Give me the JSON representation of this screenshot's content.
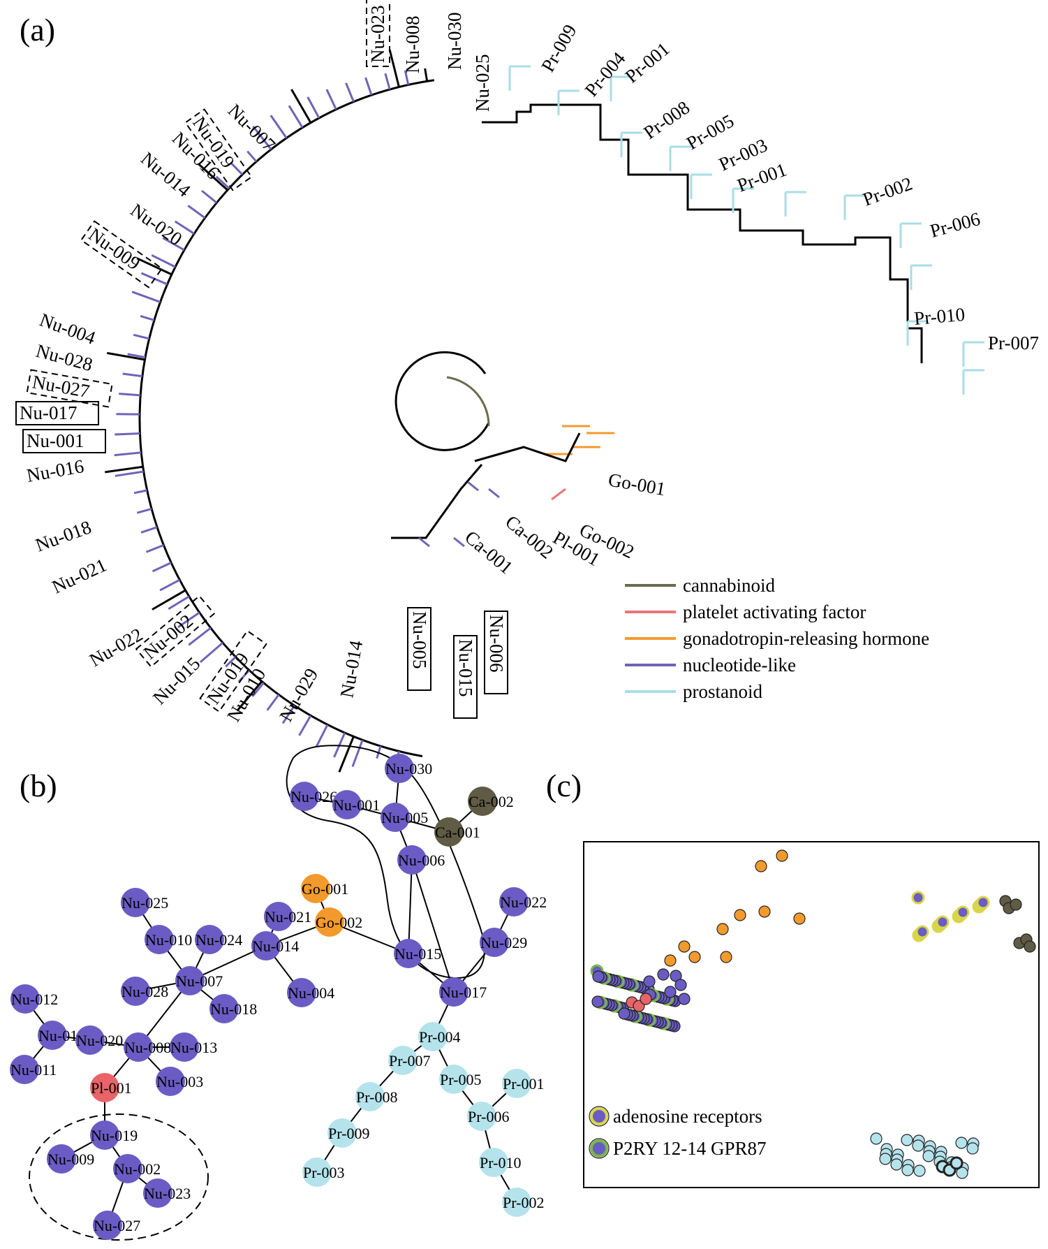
{
  "panels": {
    "a": "(a)",
    "b": "(b)",
    "c": "(c)"
  },
  "colors": {
    "cannabinoid": "#6b6a4b",
    "paf": "#e8767a",
    "gnrh": "#f39a2d",
    "nucleotide": "#6f63b9",
    "prostanoid": "#a9dde6",
    "node_nu": "#6a5cc4",
    "node_pr": "#b5e3ec",
    "node_go": "#f39a2d",
    "node_pl": "#e96468",
    "node_ca": "#5f5b44",
    "adenosine": "#d9d548",
    "p2ry": "#7ab84a"
  },
  "legend_a": [
    {
      "label": "cannabinoid",
      "color": "#6b6a4b"
    },
    {
      "label": "platelet activating factor",
      "color": "#e8767a"
    },
    {
      "label": "gonadotropin-releasing hormone",
      "color": "#f39a2d"
    },
    {
      "label": "nucleotide-like",
      "color": "#6f63b9"
    },
    {
      "label": "prostanoid",
      "color": "#a9dde6"
    }
  ],
  "tree_labels": [
    {
      "text": "Nu-023",
      "style": "dash"
    },
    {
      "text": "Nu-008",
      "style": "plain"
    },
    {
      "text": "Nu-030",
      "style": "plain"
    },
    {
      "text": "Nu-025",
      "style": "plain"
    },
    {
      "text": "Pr-009",
      "style": "plain"
    },
    {
      "text": "Pr-004",
      "style": "plain"
    },
    {
      "text": "Pr-001",
      "style": "plain"
    },
    {
      "text": "Pr-008",
      "style": "plain"
    },
    {
      "text": "Pr-005",
      "style": "plain"
    },
    {
      "text": "Pr-003",
      "style": "plain"
    },
    {
      "text": "Pr-001",
      "style": "plain"
    },
    {
      "text": "Pr-002",
      "style": "plain"
    },
    {
      "text": "Pr-006",
      "style": "plain"
    },
    {
      "text": "Pr-010",
      "style": "plain"
    },
    {
      "text": "Pr-007",
      "style": "plain"
    },
    {
      "text": "Nu-007",
      "style": "plain"
    },
    {
      "text": "Nu-019",
      "style": "dash"
    },
    {
      "text": "Nu-016",
      "style": "plain"
    },
    {
      "text": "Nu-014",
      "style": "plain"
    },
    {
      "text": "Nu-020",
      "style": "plain"
    },
    {
      "text": "Nu-009",
      "style": "dash"
    },
    {
      "text": "Nu-004",
      "style": "plain"
    },
    {
      "text": "Nu-028",
      "style": "plain"
    },
    {
      "text": "Nu-027",
      "style": "dash"
    },
    {
      "text": "Nu-017",
      "style": "box"
    },
    {
      "text": "Nu-001",
      "style": "box"
    },
    {
      "text": "Nu-016",
      "style": "plain"
    },
    {
      "text": "Nu-018",
      "style": "plain"
    },
    {
      "text": "Nu-021",
      "style": "plain"
    },
    {
      "text": "Nu-022",
      "style": "plain"
    },
    {
      "text": "Nu-002",
      "style": "dash"
    },
    {
      "text": "Nu-015",
      "style": "plain"
    },
    {
      "text": "Nu-019",
      "style": "dash"
    },
    {
      "text": "Nu-010",
      "style": "plain"
    },
    {
      "text": "Nu-029",
      "style": "plain"
    },
    {
      "text": "Nu-014",
      "style": "plain"
    },
    {
      "text": "Nu-005",
      "style": "box"
    },
    {
      "text": "Nu-015",
      "style": "box"
    },
    {
      "text": "Nu-006",
      "style": "box"
    },
    {
      "text": "Ca-001",
      "style": "plain"
    },
    {
      "text": "Ca-002",
      "style": "plain"
    },
    {
      "text": "Pl-001",
      "style": "plain"
    },
    {
      "text": "Go-002",
      "style": "plain"
    },
    {
      "text": "Go-001",
      "style": "plain"
    }
  ],
  "network_nodes": [
    {
      "id": "Nu-030",
      "type": "nu"
    },
    {
      "id": "Nu-026",
      "type": "nu"
    },
    {
      "id": "Nu-001",
      "type": "nu"
    },
    {
      "id": "Nu-005",
      "type": "nu"
    },
    {
      "id": "Ca-002",
      "type": "ca"
    },
    {
      "id": "Ca-001",
      "type": "ca"
    },
    {
      "id": "Nu-006",
      "type": "nu"
    },
    {
      "id": "Go-001",
      "type": "go"
    },
    {
      "id": "Go-002",
      "type": "go"
    },
    {
      "id": "Nu-025",
      "type": "nu"
    },
    {
      "id": "Nu-010",
      "type": "nu"
    },
    {
      "id": "Nu-021",
      "type": "nu"
    },
    {
      "id": "Nu-024",
      "type": "nu"
    },
    {
      "id": "Nu-014",
      "type": "nu"
    },
    {
      "id": "Nu-015",
      "type": "nu"
    },
    {
      "id": "Nu-022",
      "type": "nu"
    },
    {
      "id": "Nu-029",
      "type": "nu"
    },
    {
      "id": "Nu-007",
      "type": "nu"
    },
    {
      "id": "Nu-028",
      "type": "nu"
    },
    {
      "id": "Nu-018",
      "type": "nu"
    },
    {
      "id": "Nu-004",
      "type": "nu"
    },
    {
      "id": "Nu-017",
      "type": "nu"
    },
    {
      "id": "Nu-012",
      "type": "nu"
    },
    {
      "id": "Nu-016",
      "type": "nu"
    },
    {
      "id": "Nu-020",
      "type": "nu"
    },
    {
      "id": "Nu-008",
      "type": "nu"
    },
    {
      "id": "Nu-013",
      "type": "nu"
    },
    {
      "id": "Nu-011",
      "type": "nu"
    },
    {
      "id": "Nu-003",
      "type": "nu"
    },
    {
      "id": "Pl-001",
      "type": "pl"
    },
    {
      "id": "Pr-004",
      "type": "pr"
    },
    {
      "id": "Pr-007",
      "type": "pr"
    },
    {
      "id": "Pr-005",
      "type": "pr"
    },
    {
      "id": "Pr-001",
      "type": "pr"
    },
    {
      "id": "Pr-008",
      "type": "pr"
    },
    {
      "id": "Pr-006",
      "type": "pr"
    },
    {
      "id": "Pr-009",
      "type": "pr"
    },
    {
      "id": "Pr-010",
      "type": "pr"
    },
    {
      "id": "Pr-003",
      "type": "pr"
    },
    {
      "id": "Pr-002",
      "type": "pr"
    },
    {
      "id": "Nu-019",
      "type": "nu"
    },
    {
      "id": "Nu-009",
      "type": "nu"
    },
    {
      "id": "Nu-002",
      "type": "nu"
    },
    {
      "id": "Nu-023",
      "type": "nu"
    },
    {
      "id": "Nu-027",
      "type": "nu"
    }
  ],
  "network_edges": [
    [
      "Nu-026",
      "Nu-001"
    ],
    [
      "Nu-001",
      "Nu-005"
    ],
    [
      "Nu-030",
      "Nu-005"
    ],
    [
      "Nu-005",
      "Ca-001"
    ],
    [
      "Ca-001",
      "Ca-002"
    ],
    [
      "Nu-005",
      "Nu-006"
    ],
    [
      "Nu-006",
      "Nu-015"
    ],
    [
      "Nu-006",
      "Nu-017"
    ],
    [
      "Go-001",
      "Go-002"
    ],
    [
      "Go-002",
      "Nu-015"
    ],
    [
      "Go-002",
      "Nu-014"
    ],
    [
      "Nu-021",
      "Nu-014"
    ],
    [
      "Nu-014",
      "Nu-004"
    ],
    [
      "Nu-014",
      "Nu-007"
    ],
    [
      "Nu-015",
      "Nu-017"
    ],
    [
      "Nu-022",
      "Nu-029"
    ],
    [
      "Nu-029",
      "Nu-017"
    ],
    [
      "Nu-025",
      "Nu-010"
    ],
    [
      "Nu-010",
      "Nu-007"
    ],
    [
      "Nu-024",
      "Nu-007"
    ],
    [
      "Nu-007",
      "Nu-018"
    ],
    [
      "Nu-007",
      "Nu-028"
    ],
    [
      "Nu-007",
      "Nu-008"
    ],
    [
      "Nu-012",
      "Nu-016"
    ],
    [
      "Nu-016",
      "Nu-011"
    ],
    [
      "Nu-016",
      "Nu-020"
    ],
    [
      "Nu-020",
      "Nu-008"
    ],
    [
      "Nu-008",
      "Nu-013"
    ],
    [
      "Nu-008",
      "Nu-003"
    ],
    [
      "Nu-008",
      "Pl-001"
    ],
    [
      "Pl-001",
      "Nu-019"
    ],
    [
      "Nu-019",
      "Nu-009"
    ],
    [
      "Nu-019",
      "Nu-002"
    ],
    [
      "Nu-002",
      "Nu-023"
    ],
    [
      "Nu-002",
      "Nu-027"
    ],
    [
      "Nu-017",
      "Pr-004"
    ],
    [
      "Pr-004",
      "Pr-007"
    ],
    [
      "Pr-004",
      "Pr-005"
    ],
    [
      "Pr-007",
      "Pr-008"
    ],
    [
      "Pr-008",
      "Pr-009"
    ],
    [
      "Pr-009",
      "Pr-003"
    ],
    [
      "Pr-005",
      "Pr-006"
    ],
    [
      "Pr-006",
      "Pr-001"
    ],
    [
      "Pr-006",
      "Pr-010"
    ],
    [
      "Pr-010",
      "Pr-002"
    ]
  ],
  "legend_c": [
    {
      "label": "adenosine receptors",
      "fill": "#6a5cc4",
      "ring": "#d9d548"
    },
    {
      "label": "P2RY 12-14 GPR87",
      "fill": "#6a5cc4",
      "ring": "#7ab84a"
    }
  ]
}
